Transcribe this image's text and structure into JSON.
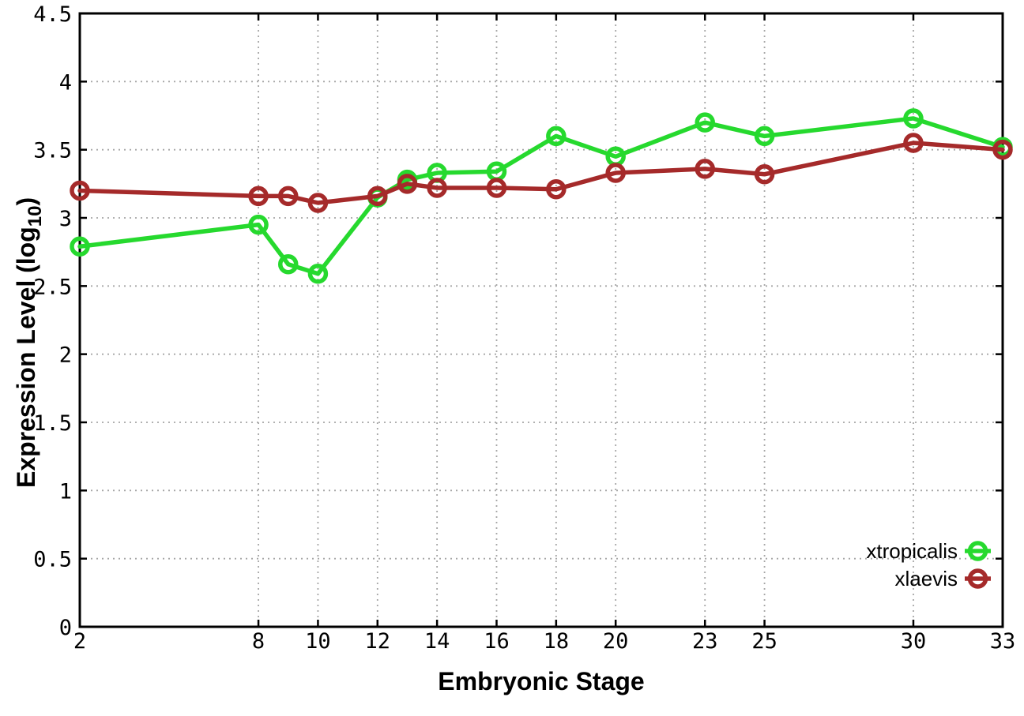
{
  "figure": {
    "background": "#ffffff",
    "axis_color": "#000000",
    "grid_color": "#a6a6a6",
    "tick_label_color": "#000000"
  },
  "chart_data": {
    "type": "line",
    "title": "",
    "xlabel": "Embryonic Stage",
    "ylabel": "Expression Level (log10)",
    "ylabel_parts": {
      "base": "Expression Level (log",
      "subscript": "10",
      "suffix": ")"
    },
    "xlim": [
      2,
      33
    ],
    "ylim": [
      0,
      4.5
    ],
    "xticks": [
      2,
      8,
      10,
      12,
      14,
      16,
      18,
      20,
      23,
      25,
      30,
      33
    ],
    "yticks": [
      0,
      0.5,
      1,
      1.5,
      2,
      2.5,
      3,
      3.5,
      4,
      4.5
    ],
    "grid": "dotted",
    "legend_position": "inside-bottom-right",
    "x": [
      2,
      8,
      9,
      10,
      12,
      13,
      14,
      16,
      18,
      20,
      23,
      25,
      30,
      33
    ],
    "series": [
      {
        "name": "xtropicalis",
        "color": "#26d92e",
        "marker": "open-circle",
        "values": [
          2.79,
          2.95,
          2.66,
          2.59,
          3.15,
          3.28,
          3.33,
          3.34,
          3.6,
          3.45,
          3.7,
          3.6,
          3.73,
          3.52
        ]
      },
      {
        "name": "xlaevis",
        "color": "#a52a2a",
        "marker": "open-circle",
        "values": [
          3.2,
          3.16,
          3.16,
          3.11,
          3.16,
          3.25,
          3.22,
          3.22,
          3.21,
          3.33,
          3.36,
          3.32,
          3.55,
          3.5
        ]
      }
    ]
  }
}
